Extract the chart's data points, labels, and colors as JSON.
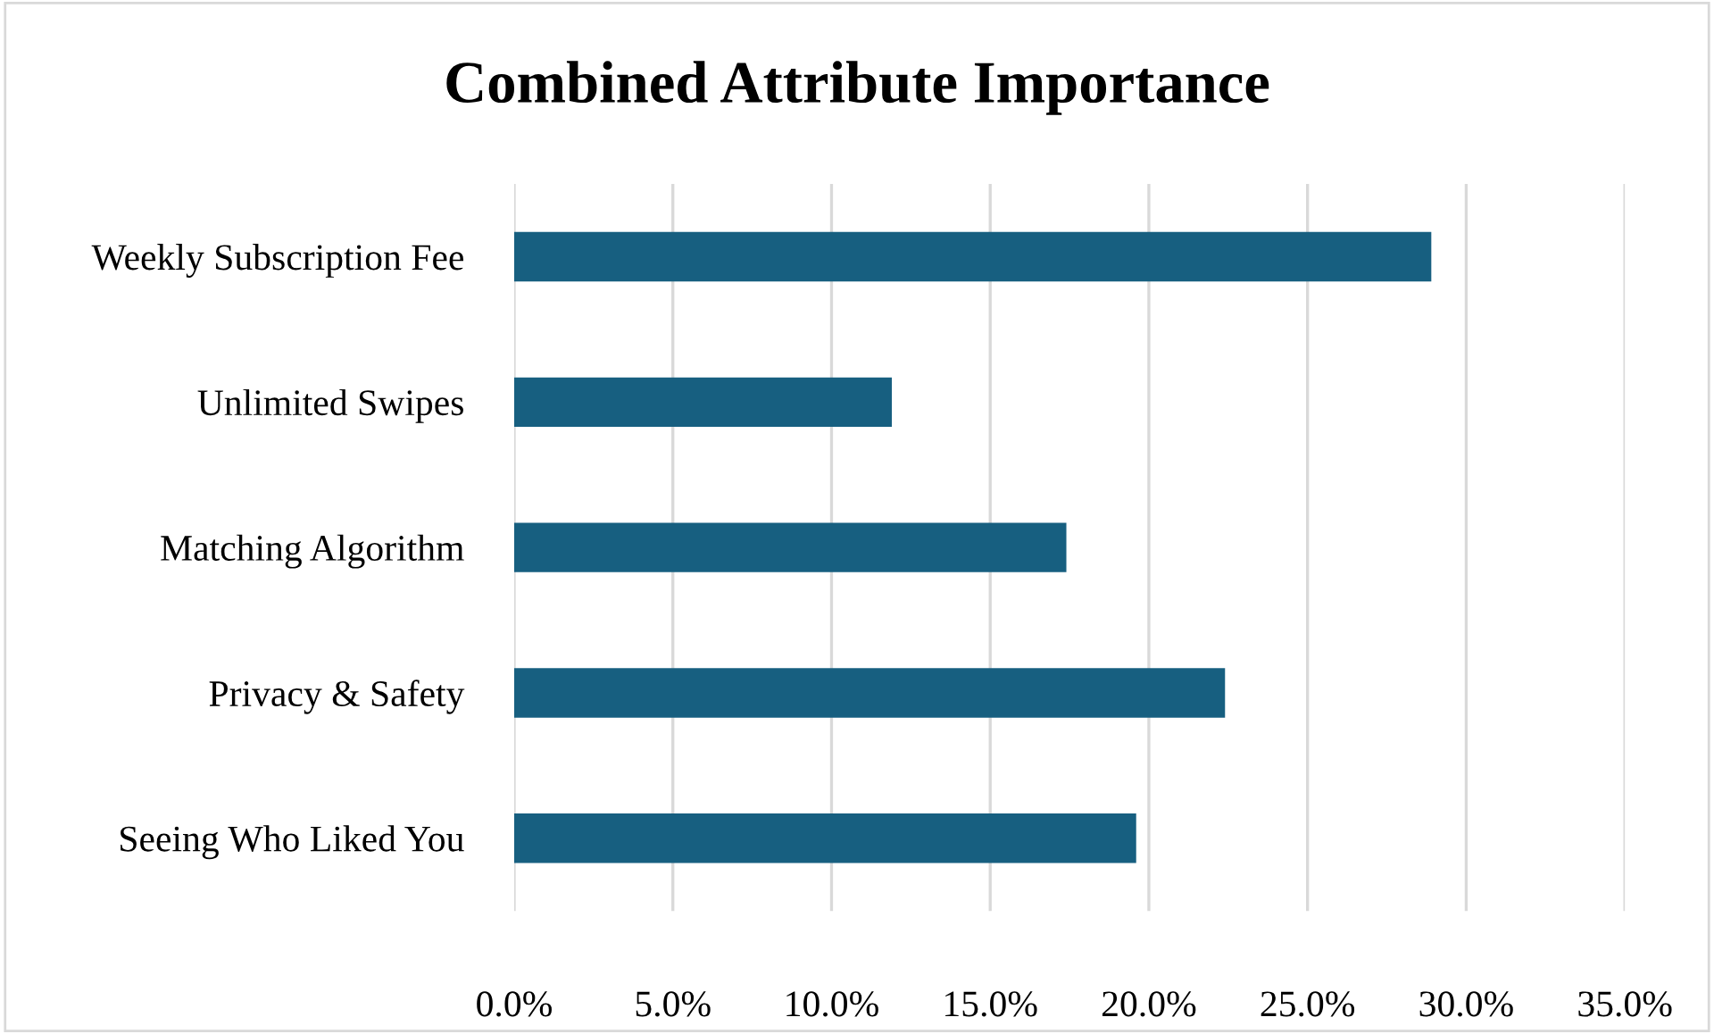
{
  "chart_data": {
    "type": "bar",
    "orientation": "horizontal",
    "title": "Combined Attribute Importance",
    "categories": [
      "Weekly Subscription Fee",
      "Unlimited Swipes",
      "Matching Algorithm",
      "Privacy & Safety",
      "Seeing Who Liked You"
    ],
    "values": [
      28.9,
      11.9,
      17.4,
      22.4,
      19.6
    ],
    "color": "#175f80",
    "xlim": [
      0,
      35
    ],
    "xticks": [
      {
        "value": 0,
        "label": "0.0%"
      },
      {
        "value": 5,
        "label": "5.0%"
      },
      {
        "value": 10,
        "label": "10.0%"
      },
      {
        "value": 15,
        "label": "15.0%"
      },
      {
        "value": 20,
        "label": "20.0%"
      },
      {
        "value": 25,
        "label": "25.0%"
      },
      {
        "value": 30,
        "label": "30.0%"
      },
      {
        "value": 35,
        "label": "35.0%"
      }
    ],
    "grid": "x",
    "legend": false
  }
}
